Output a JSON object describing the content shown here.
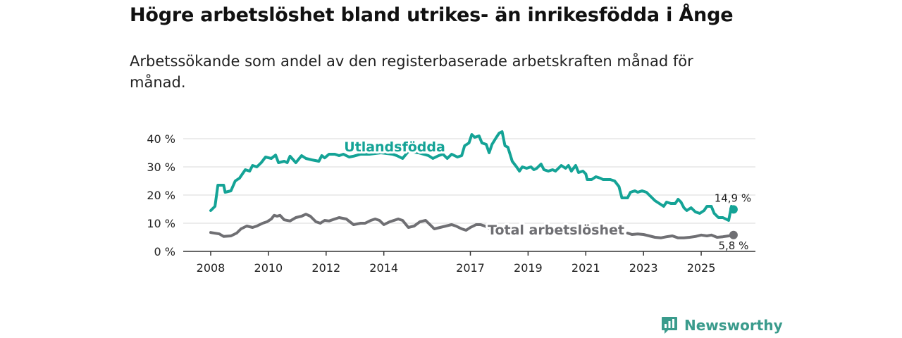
{
  "title": "Högre arbetslöshet bland utrikes- än inrikesfödda i Ånge",
  "subtitle": "Arbetssökande som andel av den registerbaserade arbetskraften månad för månad.",
  "brand": {
    "name": "Newsworthy"
  },
  "colors": {
    "foreign": "#14a396",
    "total": "#6f6f73",
    "grid": "#d9d9d9",
    "axis": "#333333",
    "brand": "#3a9b8c"
  },
  "chart_data": {
    "type": "line",
    "title": "Högre arbetslöshet bland utrikes- än inrikesfödda i Ånge",
    "xlabel": "",
    "ylabel": "",
    "xlim": [
      2008.0,
      2026.0
    ],
    "ylim": [
      0,
      45
    ],
    "yticks": [
      0,
      10,
      20,
      30,
      40
    ],
    "ytick_labels": [
      "0 %",
      "10 %",
      "20 %",
      "30 %",
      "40 %"
    ],
    "xticks": [
      2008,
      2010,
      2012,
      2014,
      2017,
      2019,
      2021,
      2023,
      2025
    ],
    "xtick_labels": [
      "2008",
      "2010",
      "2012",
      "2014",
      "2017",
      "2019",
      "2021",
      "2023",
      "2025"
    ],
    "series": [
      {
        "name": "Utlandsfödda",
        "label": "Utlandsfödda",
        "end_label": "14,9 %",
        "points": [
          [
            2008.0,
            14.5
          ],
          [
            2008.15,
            16.0
          ],
          [
            2008.25,
            23.5
          ],
          [
            2008.45,
            23.5
          ],
          [
            2008.5,
            21.0
          ],
          [
            2008.7,
            21.5
          ],
          [
            2008.85,
            25.0
          ],
          [
            2009.0,
            26.0
          ],
          [
            2009.2,
            29.0
          ],
          [
            2009.35,
            28.5
          ],
          [
            2009.45,
            30.5
          ],
          [
            2009.6,
            30.0
          ],
          [
            2009.75,
            31.5
          ],
          [
            2009.9,
            33.5
          ],
          [
            2010.1,
            33.0
          ],
          [
            2010.25,
            34.2
          ],
          [
            2010.35,
            31.5
          ],
          [
            2010.55,
            32.0
          ],
          [
            2010.65,
            31.5
          ],
          [
            2010.75,
            33.8
          ],
          [
            2010.95,
            31.5
          ],
          [
            2011.15,
            34.0
          ],
          [
            2011.3,
            33.0
          ],
          [
            2011.5,
            32.5
          ],
          [
            2011.75,
            32.0
          ],
          [
            2011.85,
            34.0
          ],
          [
            2011.95,
            33.2
          ],
          [
            2012.1,
            34.5
          ],
          [
            2012.3,
            34.5
          ],
          [
            2012.45,
            34.0
          ],
          [
            2012.6,
            34.5
          ],
          [
            2012.8,
            33.5
          ],
          [
            2012.95,
            33.8
          ],
          [
            2013.2,
            34.5
          ],
          [
            2013.5,
            34.5
          ],
          [
            2013.9,
            35.0
          ],
          [
            2014.3,
            34.5
          ],
          [
            2014.45,
            34.0
          ],
          [
            2014.65,
            33.0
          ],
          [
            2014.85,
            35.5
          ],
          [
            2015.2,
            35.0
          ],
          [
            2015.55,
            34.0
          ],
          [
            2015.7,
            33.0
          ],
          [
            2015.9,
            34.0
          ],
          [
            2016.05,
            34.5
          ],
          [
            2016.2,
            33.0
          ],
          [
            2016.35,
            34.5
          ],
          [
            2016.55,
            33.5
          ],
          [
            2016.7,
            34.0
          ],
          [
            2016.8,
            37.5
          ],
          [
            2016.95,
            38.5
          ],
          [
            2017.05,
            41.5
          ],
          [
            2017.15,
            40.5
          ],
          [
            2017.3,
            41.0
          ],
          [
            2017.4,
            38.5
          ],
          [
            2017.55,
            38.0
          ],
          [
            2017.65,
            35.0
          ],
          [
            2017.75,
            38.0
          ],
          [
            2017.9,
            40.5
          ],
          [
            2018.0,
            42.0
          ],
          [
            2018.1,
            42.5
          ],
          [
            2018.2,
            37.5
          ],
          [
            2018.3,
            37.0
          ],
          [
            2018.45,
            32.0
          ],
          [
            2018.6,
            30.0
          ],
          [
            2018.7,
            28.5
          ],
          [
            2018.8,
            30.0
          ],
          [
            2018.95,
            29.5
          ],
          [
            2019.1,
            30.0
          ],
          [
            2019.2,
            29.0
          ],
          [
            2019.3,
            29.5
          ],
          [
            2019.45,
            31.0
          ],
          [
            2019.55,
            29.0
          ],
          [
            2019.7,
            28.5
          ],
          [
            2019.85,
            29.0
          ],
          [
            2019.95,
            28.5
          ],
          [
            2020.05,
            29.5
          ],
          [
            2020.15,
            30.5
          ],
          [
            2020.3,
            29.5
          ],
          [
            2020.4,
            30.5
          ],
          [
            2020.5,
            28.5
          ],
          [
            2020.65,
            30.5
          ],
          [
            2020.75,
            28.0
          ],
          [
            2020.9,
            28.5
          ],
          [
            2021.0,
            27.5
          ],
          [
            2021.05,
            25.5
          ],
          [
            2021.2,
            25.5
          ],
          [
            2021.35,
            26.5
          ],
          [
            2021.5,
            26.0
          ],
          [
            2021.6,
            25.5
          ],
          [
            2021.7,
            25.5
          ],
          [
            2021.85,
            25.5
          ],
          [
            2022.0,
            25.0
          ],
          [
            2022.15,
            23.0
          ],
          [
            2022.25,
            19.0
          ],
          [
            2022.45,
            19.0
          ],
          [
            2022.55,
            21.0
          ],
          [
            2022.7,
            21.5
          ],
          [
            2022.8,
            21.0
          ],
          [
            2022.95,
            21.5
          ],
          [
            2023.1,
            21.0
          ],
          [
            2023.25,
            19.5
          ],
          [
            2023.4,
            18.0
          ],
          [
            2023.55,
            17.0
          ],
          [
            2023.7,
            16.0
          ],
          [
            2023.8,
            17.5
          ],
          [
            2023.95,
            17.0
          ],
          [
            2024.1,
            17.0
          ],
          [
            2024.2,
            18.5
          ],
          [
            2024.3,
            17.5
          ],
          [
            2024.4,
            15.5
          ],
          [
            2024.5,
            14.5
          ],
          [
            2024.65,
            15.5
          ],
          [
            2024.8,
            14.0
          ],
          [
            2024.95,
            13.5
          ],
          [
            2025.1,
            14.5
          ],
          [
            2025.2,
            16.0
          ],
          [
            2025.35,
            16.0
          ],
          [
            2025.45,
            13.5
          ],
          [
            2025.6,
            12.0
          ],
          [
            2025.75,
            12.0
          ],
          [
            2025.95,
            11.0
          ],
          [
            2026.05,
            16.0
          ],
          [
            2026.1,
            15.0
          ],
          [
            2026.12,
            14.9
          ]
        ]
      },
      {
        "name": "Total arbetslöshet",
        "label": "Total arbetslöshet",
        "end_label": "5,8 %",
        "points": [
          [
            2008.0,
            6.7
          ],
          [
            2008.3,
            6.2
          ],
          [
            2008.45,
            5.3
          ],
          [
            2008.7,
            5.5
          ],
          [
            2008.9,
            6.5
          ],
          [
            2009.05,
            8.0
          ],
          [
            2009.25,
            9.0
          ],
          [
            2009.45,
            8.5
          ],
          [
            2009.6,
            9.0
          ],
          [
            2009.8,
            10.0
          ],
          [
            2009.95,
            10.5
          ],
          [
            2010.1,
            11.5
          ],
          [
            2010.2,
            12.8
          ],
          [
            2010.3,
            12.5
          ],
          [
            2010.4,
            12.8
          ],
          [
            2010.55,
            11.2
          ],
          [
            2010.75,
            10.8
          ],
          [
            2010.95,
            12.0
          ],
          [
            2011.15,
            12.5
          ],
          [
            2011.3,
            13.2
          ],
          [
            2011.45,
            12.5
          ],
          [
            2011.65,
            10.5
          ],
          [
            2011.8,
            10.0
          ],
          [
            2011.95,
            11.0
          ],
          [
            2012.1,
            10.8
          ],
          [
            2012.3,
            11.5
          ],
          [
            2012.45,
            12.0
          ],
          [
            2012.7,
            11.5
          ],
          [
            2012.95,
            9.5
          ],
          [
            2013.2,
            10.0
          ],
          [
            2013.35,
            10.0
          ],
          [
            2013.55,
            11.0
          ],
          [
            2013.7,
            11.5
          ],
          [
            2013.85,
            11.0
          ],
          [
            2014.0,
            9.5
          ],
          [
            2014.2,
            10.5
          ],
          [
            2014.5,
            11.5
          ],
          [
            2014.65,
            11.0
          ],
          [
            2014.85,
            8.5
          ],
          [
            2015.05,
            9.0
          ],
          [
            2015.25,
            10.5
          ],
          [
            2015.45,
            11.0
          ],
          [
            2015.6,
            9.5
          ],
          [
            2015.75,
            8.0
          ],
          [
            2015.95,
            8.5
          ],
          [
            2016.15,
            9.0
          ],
          [
            2016.35,
            9.5
          ],
          [
            2016.5,
            9.0
          ],
          [
            2016.7,
            8.0
          ],
          [
            2016.85,
            7.5
          ],
          [
            2017.0,
            8.5
          ],
          [
            2017.2,
            9.5
          ],
          [
            2017.35,
            9.5
          ],
          [
            2017.5,
            9.0
          ],
          [
            2017.7,
            8.0
          ],
          [
            2022.45,
            6.5
          ],
          [
            2022.6,
            6.0
          ],
          [
            2022.8,
            6.2
          ],
          [
            2023.0,
            6.0
          ],
          [
            2023.2,
            5.5
          ],
          [
            2023.4,
            5.0
          ],
          [
            2023.6,
            4.8
          ],
          [
            2023.8,
            5.2
          ],
          [
            2024.0,
            5.5
          ],
          [
            2024.2,
            4.8
          ],
          [
            2024.4,
            4.8
          ],
          [
            2024.6,
            5.0
          ],
          [
            2024.8,
            5.3
          ],
          [
            2025.0,
            5.8
          ],
          [
            2025.2,
            5.5
          ],
          [
            2025.35,
            5.8
          ],
          [
            2025.55,
            5.0
          ],
          [
            2025.75,
            5.2
          ],
          [
            2025.95,
            5.5
          ],
          [
            2026.12,
            5.8
          ]
        ]
      }
    ]
  }
}
